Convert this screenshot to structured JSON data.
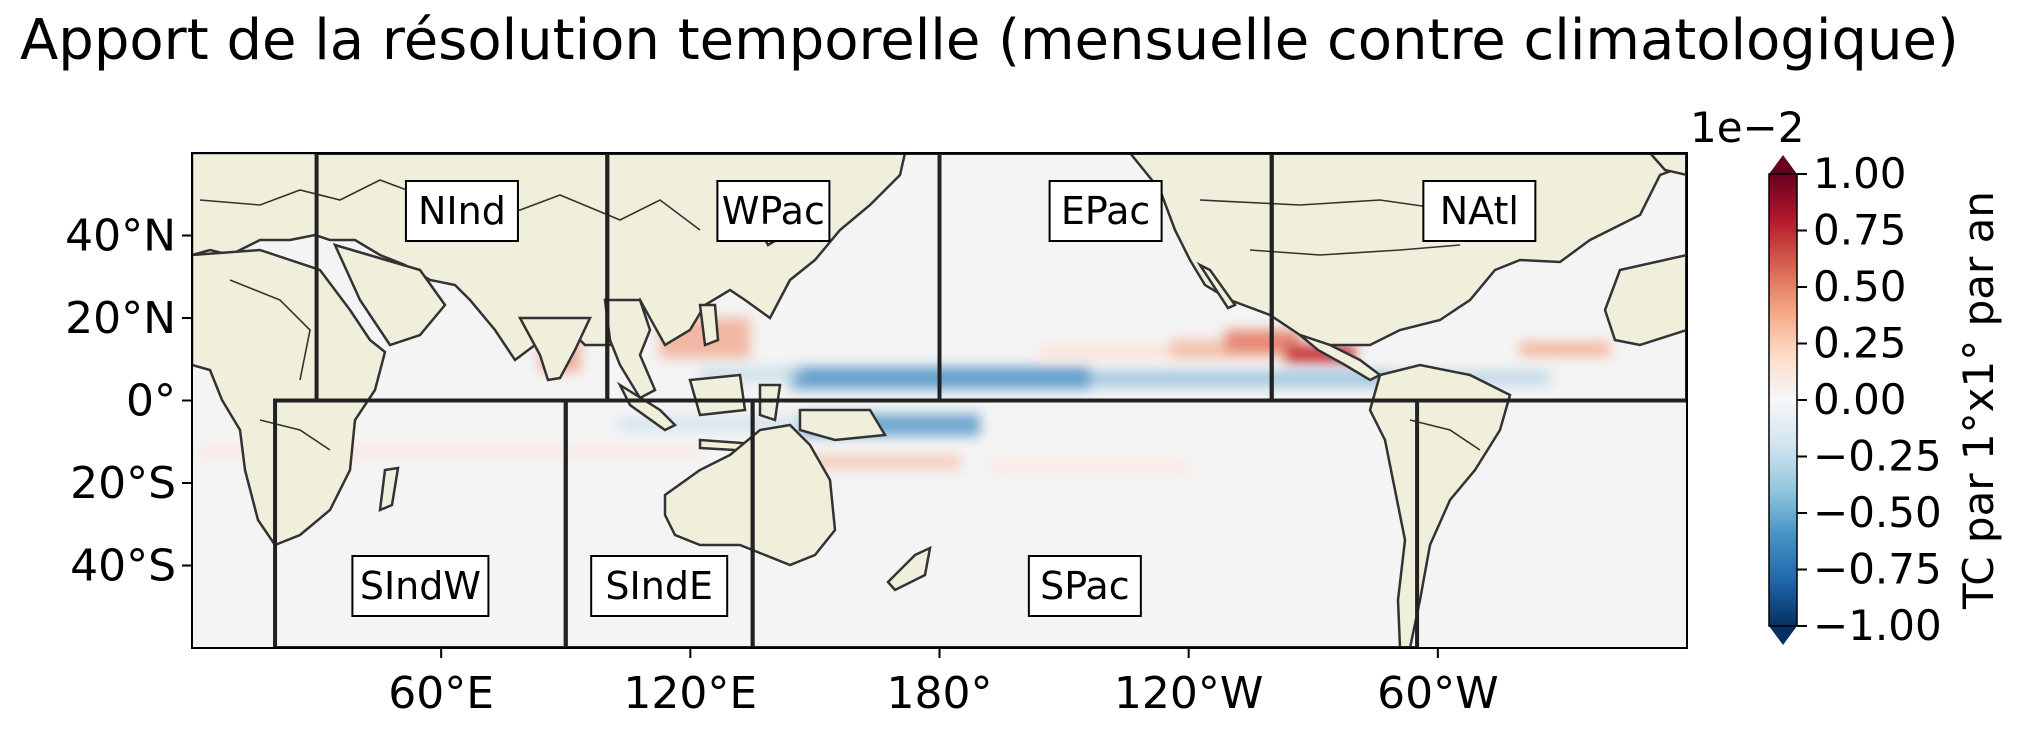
{
  "title": "Apport de la résolution temporelle (mensuelle contre climatologique)",
  "map": {
    "lat_ticks": [
      {
        "value": 40,
        "label": "40°N"
      },
      {
        "value": 20,
        "label": "20°N"
      },
      {
        "value": 0,
        "label": "0°"
      },
      {
        "value": -20,
        "label": "20°S"
      },
      {
        "value": -40,
        "label": "40°S"
      }
    ],
    "lon_ticks": [
      {
        "value": 60,
        "label": "60°E"
      },
      {
        "value": 120,
        "label": "120°E"
      },
      {
        "value": 180,
        "label": "180°"
      },
      {
        "value": 240,
        "label": "120°W"
      },
      {
        "value": 300,
        "label": "60°W"
      }
    ],
    "lon_range": [
      0,
      360
    ],
    "lat_range": [
      -60,
      60
    ],
    "land_color": "#efefdb",
    "ocean_color": "#f4f4f4"
  },
  "regions": [
    {
      "name": "NInd",
      "lon": [
        30,
        100
      ],
      "lat": [
        0,
        60
      ]
    },
    {
      "name": "WPac",
      "lon": [
        100,
        180
      ],
      "lat": [
        0,
        60
      ]
    },
    {
      "name": "EPac",
      "lon": [
        180,
        260
      ],
      "lat": [
        0,
        60
      ]
    },
    {
      "name": "NAtl",
      "lon": [
        260,
        360
      ],
      "lat": [
        0,
        60
      ]
    },
    {
      "name": "SIndW",
      "lon": [
        20,
        90
      ],
      "lat": [
        -60,
        0
      ]
    },
    {
      "name": "SIndE",
      "lon": [
        90,
        135
      ],
      "lat": [
        -60,
        0
      ]
    },
    {
      "name": "SPac",
      "lon": [
        135,
        295
      ],
      "lat": [
        -60,
        0
      ]
    }
  ],
  "colorbar": {
    "exponent_label": "1e−2",
    "label": "TC par 1°x1° par an",
    "ticks": [
      {
        "value": 1.0,
        "label": "1.00"
      },
      {
        "value": 0.75,
        "label": "0.75"
      },
      {
        "value": 0.5,
        "label": "0.50"
      },
      {
        "value": 0.25,
        "label": "0.25"
      },
      {
        "value": 0.0,
        "label": "0.00"
      },
      {
        "value": -0.25,
        "label": "−0.25"
      },
      {
        "value": -0.5,
        "label": "−0.50"
      },
      {
        "value": -0.75,
        "label": "−0.75"
      },
      {
        "value": -1.0,
        "label": "−1.00"
      }
    ],
    "range": [
      -1.0,
      1.0
    ],
    "colormap": [
      "#67001f",
      "#b2182b",
      "#d6604d",
      "#f4a582",
      "#fddbc7",
      "#f7f7f7",
      "#d1e5f0",
      "#92c5de",
      "#4393c3",
      "#2166ac",
      "#053061"
    ]
  }
}
